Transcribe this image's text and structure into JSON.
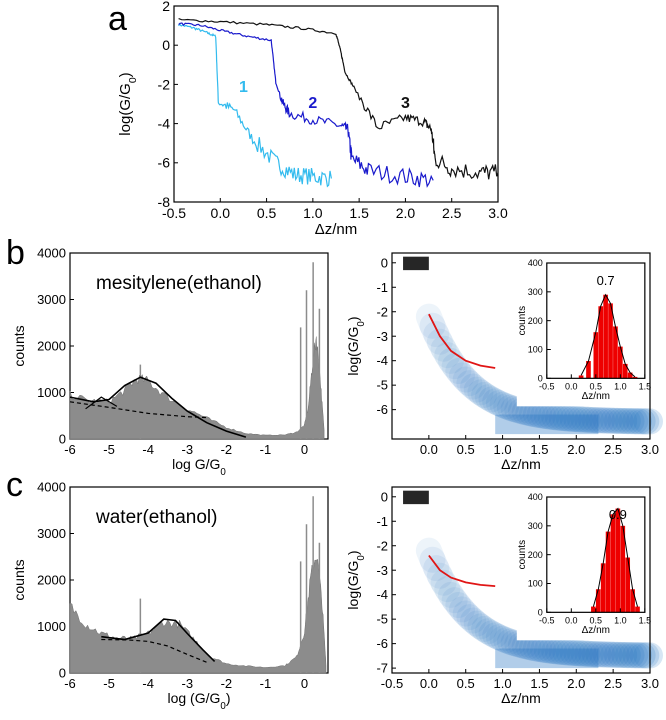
{
  "panel_letters": {
    "a": "a",
    "b": "b",
    "c": "c"
  },
  "colors": {
    "trace1": "#33bbee",
    "trace2": "#1a1acc",
    "trace3": "#111111",
    "histogram": "#8c8c8c",
    "fit": "#000000",
    "fit_component": "#000000",
    "mean_curve": "#e01515",
    "inset_hist": "#ee0000",
    "density": "#1f6fbf"
  },
  "chart_data": [
    {
      "id": "a",
      "type": "line",
      "xlabel": "Δz/nm",
      "ylabel": "log(G/G0)",
      "xlim": [
        -0.5,
        3.0
      ],
      "ylim": [
        -8,
        2
      ],
      "xticks": [
        "-0.5",
        "0.0",
        "0.5",
        "1.0",
        "1.5",
        "2.0",
        "2.5",
        "3.0"
      ],
      "yticks": [
        "-8",
        "-6",
        "-4",
        "-2",
        "0",
        "2"
      ],
      "series": [
        {
          "name": "1",
          "color": "#33bbee",
          "points": [
            [
              -0.45,
              1.05
            ],
            [
              -0.3,
              0.9
            ],
            [
              -0.15,
              0.65
            ],
            [
              -0.05,
              0.45
            ],
            [
              -0.02,
              -2.9
            ],
            [
              0.15,
              -3.3
            ],
            [
              0.35,
              -4.8
            ],
            [
              0.6,
              -6.0
            ],
            [
              0.8,
              -6.6
            ],
            [
              1.0,
              -6.7
            ],
            [
              1.2,
              -6.8
            ]
          ]
        },
        {
          "name": "2",
          "color": "#1a1acc",
          "points": [
            [
              -0.45,
              1.1
            ],
            [
              -0.2,
              1.0
            ],
            [
              0.05,
              0.7
            ],
            [
              0.3,
              0.45
            ],
            [
              0.55,
              0.25
            ],
            [
              0.6,
              -1.9
            ],
            [
              0.68,
              -3.0
            ],
            [
              0.75,
              -3.5
            ],
            [
              1.0,
              -3.8
            ],
            [
              1.3,
              -4.1
            ],
            [
              1.38,
              -4.3
            ],
            [
              1.42,
              -5.8
            ],
            [
              1.6,
              -6.4
            ],
            [
              2.0,
              -6.7
            ],
            [
              2.3,
              -6.9
            ]
          ]
        },
        {
          "name": "3",
          "color": "#111111",
          "points": [
            [
              -0.45,
              1.3
            ],
            [
              0.0,
              1.2
            ],
            [
              0.5,
              1.05
            ],
            [
              0.9,
              0.85
            ],
            [
              1.25,
              0.6
            ],
            [
              1.3,
              -0.3
            ],
            [
              1.35,
              -1.4
            ],
            [
              1.45,
              -2.2
            ],
            [
              1.7,
              -4.2
            ],
            [
              2.0,
              -3.7
            ],
            [
              2.2,
              -3.9
            ],
            [
              2.28,
              -4.3
            ],
            [
              2.32,
              -5.8
            ],
            [
              2.5,
              -6.3
            ],
            [
              2.8,
              -6.5
            ],
            [
              3.0,
              -6.5
            ]
          ]
        }
      ],
      "annotations": [
        "1",
        "2",
        "3"
      ]
    },
    {
      "id": "b-hist",
      "type": "area",
      "annotation": "mesitylene(ethanol)",
      "xlabel": "log G/G0",
      "ylabel": "counts",
      "xlim": [
        -6,
        0.6
      ],
      "ylim": [
        0,
        4000
      ],
      "xticks": [
        "-6",
        "-5",
        "-4",
        "-3",
        "-2",
        "-1",
        "0"
      ],
      "yticks": [
        "0",
        "1000",
        "2000",
        "3000",
        "4000"
      ],
      "x": [
        -6.0,
        -5.5,
        -5.0,
        -4.6,
        -4.3,
        -4.0,
        -3.6,
        -3.0,
        -2.5,
        -2.0,
        -1.5,
        -1.0,
        -0.5,
        -0.2,
        0.0,
        0.1,
        0.2,
        0.3,
        0.4,
        0.5
      ],
      "values": [
        950,
        820,
        800,
        1050,
        1300,
        1250,
        950,
        650,
        450,
        250,
        120,
        80,
        90,
        150,
        300,
        700,
        1600,
        2200,
        1300,
        200
      ],
      "fit_total": [
        [
          -6.0,
          900
        ],
        [
          -5.4,
          800
        ],
        [
          -5.0,
          850
        ],
        [
          -4.6,
          1150
        ],
        [
          -4.2,
          1330
        ],
        [
          -3.8,
          1200
        ],
        [
          -3.4,
          880
        ],
        [
          -3.0,
          600
        ],
        [
          -2.5,
          350
        ],
        [
          -2.0,
          170
        ],
        [
          -1.5,
          40
        ]
      ],
      "fit_baseline": [
        [
          -6.0,
          800
        ],
        [
          -5.0,
          680
        ],
        [
          -4.0,
          550
        ],
        [
          -3.0,
          480
        ],
        [
          -2.5,
          460
        ]
      ],
      "fit_component2": [
        [
          -5.6,
          650
        ],
        [
          -5.2,
          900
        ],
        [
          -4.8,
          700
        ]
      ]
    },
    {
      "id": "b-density",
      "type": "heatmap",
      "xlabel": "Δz/nm",
      "ylabel": "log(G/G0)",
      "xlim": [
        -0.5,
        3.0
      ],
      "ylim": [
        -7.2,
        0.4
      ],
      "xticks": [
        "0.0",
        "0.5",
        "1.0",
        "1.5",
        "2.0",
        "2.5",
        "3.0"
      ],
      "yticks": [
        "-6",
        "-5",
        "-4",
        "-3",
        "-2",
        "-1",
        "0"
      ],
      "mean_curve": [
        [
          0.0,
          -2.1
        ],
        [
          0.15,
          -3.0
        ],
        [
          0.3,
          -3.6
        ],
        [
          0.5,
          -4.0
        ],
        [
          0.7,
          -4.2
        ],
        [
          0.9,
          -4.3
        ]
      ],
      "inset": {
        "type": "bar",
        "xlabel": "Δz/nm",
        "ylabel": "counts",
        "xlim": [
          -0.5,
          1.5
        ],
        "ylim": [
          0,
          400
        ],
        "xticks": [
          "-0.5",
          "0.0",
          "0.5",
          "1.0",
          "1.5"
        ],
        "yticks": [
          "0",
          "100",
          "200",
          "300",
          "400"
        ],
        "peak_label": "0.7",
        "x": [
          0.2,
          0.35,
          0.5,
          0.6,
          0.7,
          0.8,
          0.9,
          1.0,
          1.1,
          1.2,
          1.3
        ],
        "values": [
          10,
          60,
          160,
          250,
          290,
          260,
          180,
          110,
          50,
          20,
          5
        ]
      }
    },
    {
      "id": "c-hist",
      "type": "area",
      "annotation": "water(ethanol)",
      "xlabel": "log (G/G0)",
      "ylabel": "counts",
      "xlim": [
        -6,
        0.6
      ],
      "ylim": [
        0,
        4000
      ],
      "xticks": [
        "-6",
        "-5",
        "-4",
        "-3",
        "-2",
        "-1",
        "0"
      ],
      "yticks": [
        "0",
        "1000",
        "2000",
        "3000",
        "4000"
      ],
      "x": [
        -6.0,
        -5.6,
        -5.2,
        -4.8,
        -4.4,
        -4.0,
        -3.6,
        -3.2,
        -2.8,
        -2.4,
        -2.0,
        -1.5,
        -1.0,
        -0.5,
        -0.2,
        0.0,
        0.15,
        0.3,
        0.45,
        0.55
      ],
      "values": [
        1450,
        1050,
        850,
        750,
        730,
        850,
        1100,
        1050,
        700,
        350,
        200,
        150,
        120,
        160,
        350,
        900,
        2000,
        2600,
        1500,
        150
      ],
      "fit_total": [
        [
          -5.2,
          780
        ],
        [
          -4.6,
          720
        ],
        [
          -4.0,
          860
        ],
        [
          -3.6,
          1160
        ],
        [
          -3.3,
          1130
        ],
        [
          -3.0,
          850
        ],
        [
          -2.6,
          500
        ],
        [
          -2.3,
          250
        ]
      ],
      "fit_baseline": [
        [
          -5.2,
          720
        ],
        [
          -4.5,
          710
        ],
        [
          -4.0,
          680
        ],
        [
          -3.5,
          580
        ],
        [
          -3.0,
          400
        ],
        [
          -2.5,
          230
        ]
      ]
    },
    {
      "id": "c-density",
      "type": "heatmap",
      "xlabel": "Δz/nm",
      "ylabel": "log(G/G0)",
      "xlim": [
        -0.5,
        3.0
      ],
      "ylim": [
        -7.2,
        0.4
      ],
      "xticks": [
        "-0.5",
        "0.0",
        "0.5",
        "1.0",
        "1.5",
        "2.0",
        "2.5",
        "3.0"
      ],
      "yticks": [
        "-7",
        "-6",
        "-5",
        "-4",
        "-3",
        "-2",
        "-1",
        "0"
      ],
      "mean_curve": [
        [
          0.0,
          -2.4
        ],
        [
          0.15,
          -3.0
        ],
        [
          0.3,
          -3.3
        ],
        [
          0.5,
          -3.5
        ],
        [
          0.7,
          -3.6
        ],
        [
          0.9,
          -3.65
        ]
      ],
      "inset": {
        "type": "bar",
        "xlabel": "Δz/nm",
        "ylabel": "counts",
        "xlim": [
          -0.5,
          1.5
        ],
        "ylim": [
          0,
          400
        ],
        "xticks": [
          "-0.5",
          "0.0",
          "0.5",
          "1.0",
          "1.5"
        ],
        "yticks": [
          "0",
          "100",
          "200",
          "300",
          "400"
        ],
        "peak_label": "0.9",
        "x": [
          0.45,
          0.55,
          0.65,
          0.75,
          0.85,
          0.95,
          1.05,
          1.15,
          1.25,
          1.35
        ],
        "values": [
          20,
          80,
          170,
          280,
          340,
          360,
          300,
          190,
          80,
          20
        ]
      }
    }
  ]
}
